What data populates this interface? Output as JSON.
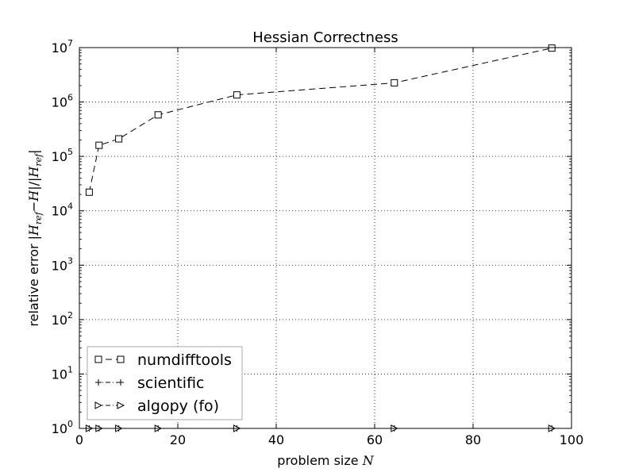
{
  "chart_data": {
    "type": "line",
    "title": "Hessian Correctness",
    "xlabel": "problem size N",
    "ylabel": "relative error |H_ref − H| / |H_ref|",
    "xlim": [
      0,
      100
    ],
    "ylim_log10": [
      0,
      7
    ],
    "yscale": "log",
    "grid": true,
    "legend_position": "lower-left",
    "x_ticks": [
      "0",
      "20",
      "40",
      "60",
      "80",
      "100"
    ],
    "y_ticks": [
      {
        "base": "10",
        "exp": "0"
      },
      {
        "base": "10",
        "exp": "1"
      },
      {
        "base": "10",
        "exp": "2"
      },
      {
        "base": "10",
        "exp": "3"
      },
      {
        "base": "10",
        "exp": "4"
      },
      {
        "base": "10",
        "exp": "5"
      },
      {
        "base": "10",
        "exp": "6"
      },
      {
        "base": "10",
        "exp": "7"
      }
    ],
    "series": [
      {
        "name": "numdifftools",
        "marker": "square",
        "dash": "8 5",
        "x": [
          2,
          4,
          8,
          16,
          32,
          64,
          96
        ],
        "y": [
          22000,
          160000,
          210000,
          580000,
          1350000,
          2250000,
          9800000
        ]
      },
      {
        "name": "scientific",
        "marker": "plus",
        "dash": "6 3 1 3",
        "x": [
          2,
          4,
          8,
          16,
          32,
          64,
          96
        ],
        "y": [
          1,
          1,
          1,
          1,
          1,
          1,
          1
        ]
      },
      {
        "name": "algopy (fo)",
        "marker": "triangle-right",
        "dash": "6 3 1 3",
        "x": [
          2,
          4,
          8,
          16,
          32,
          64,
          96
        ],
        "y": [
          1,
          1,
          1,
          1,
          1,
          1,
          1
        ]
      }
    ]
  }
}
